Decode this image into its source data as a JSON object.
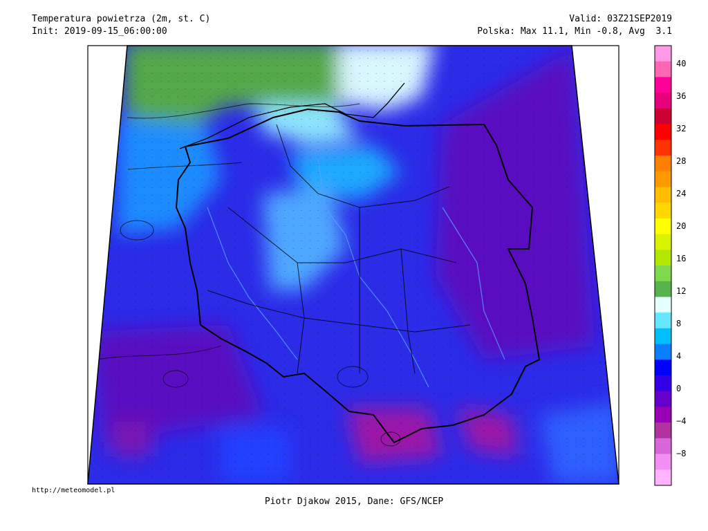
{
  "header": {
    "title": "Temperatura powietrza (2m, st. C)",
    "init": "Init: 2019-09-15_06:00:00",
    "valid": "Valid: 03Z21SEP2019",
    "stats": "Polska: Max 11.1, Min -0.8, Avg  3.1"
  },
  "footer": {
    "url": "http://meteomodel.pl",
    "credit": "Piotr Djakow 2015, Dane: GFS/NCEP"
  },
  "colorbar": {
    "labels": [
      "40",
      "36",
      "32",
      "28",
      "24",
      "20",
      "16",
      "12",
      "8",
      "4",
      "0",
      "−4",
      "−8"
    ],
    "colors": [
      "#ff99e6",
      "#ff66b3",
      "#ff0099",
      "#e6007a",
      "#cc0033",
      "#ff0000",
      "#ff3300",
      "#ff7f00",
      "#ff9900",
      "#ffbf00",
      "#ffd700",
      "#ffff00",
      "#d9f200",
      "#b3e600",
      "#80d94d",
      "#59b34d",
      "#e6ffff",
      "#66e6ff",
      "#00bfff",
      "#0a7fff",
      "#0000ff",
      "#3300e6",
      "#6600cc",
      "#9900b3",
      "#b3339e",
      "#d966d9",
      "#f28ff2",
      "#ffb3ff"
    ]
  }
}
